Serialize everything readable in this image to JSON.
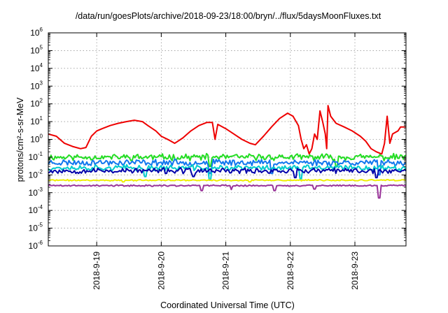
{
  "chart_data": {
    "type": "line",
    "title": "/data/run/goesPlots/archive/2018-09-23/18:00/bryn/../flux/5daysMoonFluxes.txt",
    "xlabel": "Coordinated Universal Time (UTC)",
    "ylabel": "protons/cm²-s-sr-MeV",
    "y_scale": "log",
    "ylim": [
      1e-06,
      1000000.0
    ],
    "y_ticks": [
      {
        "base": "10",
        "exp": "-6"
      },
      {
        "base": "10",
        "exp": "-5"
      },
      {
        "base": "10",
        "exp": "-4"
      },
      {
        "base": "10",
        "exp": "-3"
      },
      {
        "base": "10",
        "exp": "-2"
      },
      {
        "base": "10",
        "exp": "-1"
      },
      {
        "base": "10",
        "exp": "0"
      },
      {
        "base": "10",
        "exp": "1"
      },
      {
        "base": "10",
        "exp": "2"
      },
      {
        "base": "10",
        "exp": "3"
      },
      {
        "base": "10",
        "exp": "4"
      },
      {
        "base": "10",
        "exp": "5"
      },
      {
        "base": "10",
        "exp": "6"
      }
    ],
    "xlim": [
      "2018-09-18 06:00",
      "2018-09-23 19:00"
    ],
    "x_ticks": [
      {
        "label": "2018-9-19",
        "date": "2018-09-19 00:00"
      },
      {
        "label": "2018-9-20",
        "date": "2018-09-20 00:00"
      },
      {
        "label": "2018-9-21",
        "date": "2018-09-21 00:00"
      },
      {
        "label": "2018-9-22",
        "date": "2018-09-22 00:00"
      },
      {
        "label": "2018-9-23",
        "date": "2018-09-23 00:00"
      }
    ],
    "grid": true,
    "series": [
      {
        "color": "#ee0000",
        "points": [
          [
            "2018-09-18 06:00",
            2.0
          ],
          [
            "2018-09-18 09:00",
            1.5
          ],
          [
            "2018-09-18 12:00",
            0.6
          ],
          [
            "2018-09-18 15:00",
            0.4
          ],
          [
            "2018-09-18 18:00",
            0.3
          ],
          [
            "2018-09-18 20:00",
            0.35
          ],
          [
            "2018-09-18 22:00",
            1.5
          ],
          [
            "2018-09-19 00:00",
            3.0
          ],
          [
            "2018-09-19 02:00",
            4.0
          ],
          [
            "2018-09-19 05:00",
            6.0
          ],
          [
            "2018-09-19 08:00",
            8.0
          ],
          [
            "2018-09-19 11:00",
            10.0
          ],
          [
            "2018-09-19 14:00",
            12.0
          ],
          [
            "2018-09-19 17:00",
            10.0
          ],
          [
            "2018-09-19 19:00",
            6.0
          ],
          [
            "2018-09-19 22:00",
            3.0
          ],
          [
            "2018-09-20 00:00",
            1.5
          ],
          [
            "2018-09-20 03:00",
            0.9
          ],
          [
            "2018-09-20 05:00",
            0.6
          ],
          [
            "2018-09-20 08:00",
            1.2
          ],
          [
            "2018-09-20 11:00",
            3.0
          ],
          [
            "2018-09-20 14:00",
            6.0
          ],
          [
            "2018-09-20 17:00",
            9.0
          ],
          [
            "2018-09-20 19:00",
            9.0
          ],
          [
            "2018-09-20 20:00",
            1.0
          ],
          [
            "2018-09-20 21:00",
            7.0
          ],
          [
            "2018-09-21 00:00",
            4.0
          ],
          [
            "2018-09-21 03:00",
            2.0
          ],
          [
            "2018-09-21 06:00",
            1.0
          ],
          [
            "2018-09-21 09:00",
            0.6
          ],
          [
            "2018-09-21 11:00",
            0.5
          ],
          [
            "2018-09-21 14:00",
            1.5
          ],
          [
            "2018-09-21 17:00",
            5.0
          ],
          [
            "2018-09-21 20:00",
            15.0
          ],
          [
            "2018-09-21 23:00",
            30.0
          ],
          [
            "2018-09-22 01:00",
            20.0
          ],
          [
            "2018-09-22 03:00",
            6.0
          ],
          [
            "2018-09-22 04:00",
            1.0
          ],
          [
            "2018-09-22 05:00",
            0.3
          ],
          [
            "2018-09-22 06:00",
            0.5
          ],
          [
            "2018-09-22 07:00",
            0.15
          ],
          [
            "2018-09-22 08:00",
            0.3
          ],
          [
            "2018-09-22 09:00",
            2.0
          ],
          [
            "2018-09-22 10:00",
            1.0
          ],
          [
            "2018-09-22 11:00",
            40.0
          ],
          [
            "2018-09-22 12:00",
            10.0
          ],
          [
            "2018-09-22 13:00",
            2.0
          ],
          [
            "2018-09-22 13:30",
            0.3
          ],
          [
            "2018-09-22 14:00",
            80.0
          ],
          [
            "2018-09-22 15:00",
            20.0
          ],
          [
            "2018-09-22 17:00",
            8.0
          ],
          [
            "2018-09-22 20:00",
            5.0
          ],
          [
            "2018-09-22 23:00",
            3.0
          ],
          [
            "2018-09-23 02:00",
            1.5
          ],
          [
            "2018-09-23 04:00",
            0.8
          ],
          [
            "2018-09-23 06:00",
            0.3
          ],
          [
            "2018-09-23 08:00",
            0.2
          ],
          [
            "2018-09-23 10:00",
            0.15
          ],
          [
            "2018-09-23 11:00",
            0.6
          ],
          [
            "2018-09-23 12:00",
            20.0
          ],
          [
            "2018-09-23 13:00",
            0.6
          ],
          [
            "2018-09-23 14:00",
            2.0
          ],
          [
            "2018-09-23 16:00",
            3.0
          ],
          [
            "2018-09-23 17:00",
            5.0
          ],
          [
            "2018-09-23 19:00",
            5.0
          ]
        ]
      },
      {
        "color": "#22dd22",
        "base": 0.1,
        "noise": 0.28,
        "seed": 11,
        "dips": [
          [
            "2018-09-20 18:00",
            0.03
          ],
          [
            "2018-09-22 17:00",
            0.03
          ]
        ]
      },
      {
        "color": "#1177ee",
        "base": 0.05,
        "noise": 0.28,
        "seed": 23,
        "dips": [
          [
            "2018-09-20 18:00",
            0.012
          ],
          [
            "2018-09-21 17:00",
            0.012
          ],
          [
            "2018-09-23 09:00",
            0.01
          ]
        ]
      },
      {
        "color": "#00cccc",
        "base": 0.025,
        "noise": 0.25,
        "seed": 37,
        "dips": [
          [
            "2018-09-19 18:00",
            0.008
          ],
          [
            "2018-09-20 18:00",
            0.005
          ],
          [
            "2018-09-22 04:00",
            0.006
          ]
        ]
      },
      {
        "color": "#0000aa",
        "base": 0.017,
        "noise": 0.25,
        "seed": 53,
        "dips": [
          [
            "2018-09-20 12:00",
            0.008
          ],
          [
            "2018-09-22 02:00",
            0.007
          ],
          [
            "2018-09-23 08:00",
            0.007
          ]
        ]
      },
      {
        "color": "#eeee00",
        "base": 0.005,
        "noise": 0.06,
        "seed": 71,
        "dips": [
          [
            "2018-09-19 10:00",
            0.004
          ],
          [
            "2018-09-21 09:00",
            0.004
          ]
        ]
      },
      {
        "color": "#993399",
        "base": 0.0025,
        "noise": 0.07,
        "seed": 89,
        "dips": [
          [
            "2018-09-20 15:00",
            0.0013
          ],
          [
            "2018-09-21 02:00",
            0.0015
          ],
          [
            "2018-09-21 18:00",
            0.0013
          ],
          [
            "2018-09-22 09:00",
            0.0016
          ],
          [
            "2018-09-23 09:00",
            0.0005
          ]
        ]
      }
    ]
  }
}
